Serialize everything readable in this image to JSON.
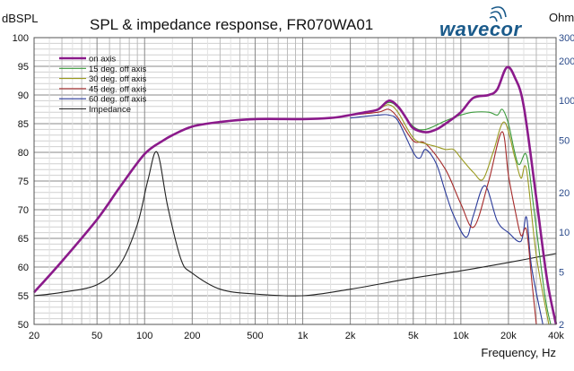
{
  "chart_data": {
    "type": "line",
    "title": "SPL & impedance response, FR070WA01",
    "xlabel": "Frequency, Hz",
    "ylabel": "dBSPL",
    "y2label": "Ohm",
    "xscale": "log",
    "xlim": [
      20,
      40000
    ],
    "ylim": [
      50,
      100
    ],
    "y2lim": [
      2,
      300
    ],
    "y2scale": "log",
    "grid": true,
    "legend_position": "top-left",
    "xticks": [
      {
        "v": 20,
        "label": "20"
      },
      {
        "v": 50,
        "label": "50"
      },
      {
        "v": 100,
        "label": "100"
      },
      {
        "v": 200,
        "label": "200"
      },
      {
        "v": 500,
        "label": "500"
      },
      {
        "v": 1000,
        "label": "1k"
      },
      {
        "v": 2000,
        "label": "2k"
      },
      {
        "v": 5000,
        "label": "5k"
      },
      {
        "v": 10000,
        "label": "10k"
      },
      {
        "v": 20000,
        "label": "20k"
      },
      {
        "v": 40000,
        "label": "40k"
      }
    ],
    "yticks": [
      {
        "v": 100,
        "label": "100"
      },
      {
        "v": 95,
        "label": "95"
      },
      {
        "v": 90,
        "label": "90"
      },
      {
        "v": 85,
        "label": "85"
      },
      {
        "v": 80,
        "label": "80"
      },
      {
        "v": 75,
        "label": "75"
      },
      {
        "v": 70,
        "label": "70"
      },
      {
        "v": 65,
        "label": "65"
      },
      {
        "v": 60,
        "label": "60"
      },
      {
        "v": 55,
        "label": "55"
      },
      {
        "v": 50,
        "label": "50"
      }
    ],
    "y2ticks": [
      {
        "v": 300,
        "label": "300"
      },
      {
        "v": 200,
        "label": "200"
      },
      {
        "v": 100,
        "label": "100"
      },
      {
        "v": 50,
        "label": "50"
      },
      {
        "v": 20,
        "label": "20"
      },
      {
        "v": 10,
        "label": "10"
      },
      {
        "v": 5,
        "label": "5"
      },
      {
        "v": 2,
        "label": "2"
      }
    ],
    "series": [
      {
        "name": "on axis",
        "color": "#8b1a8b",
        "axis": "left",
        "width": 2.6,
        "x": [
          20,
          30,
          50,
          70,
          100,
          130,
          150,
          200,
          300,
          500,
          1000,
          1500,
          2000,
          2500,
          3000,
          3500,
          4000,
          4500,
          5000,
          6000,
          7000,
          8000,
          10000,
          12000,
          15000,
          17000,
          19500,
          22000,
          25000,
          30000,
          35000,
          40000
        ],
        "y": [
          55.6,
          61,
          68.3,
          74,
          79.7,
          82,
          83,
          84.5,
          85.3,
          85.8,
          85.8,
          86,
          86.5,
          87,
          87.5,
          89,
          88,
          86,
          84.2,
          83.5,
          84,
          85,
          87,
          89.5,
          90,
          91,
          94.8,
          93,
          88,
          72,
          58,
          50
        ]
      },
      {
        "name": "15 deg. off axis",
        "color": "#3a9a3a",
        "axis": "left",
        "width": 1.1,
        "x": [
          3000,
          3500,
          4000,
          5000,
          6000,
          8000,
          10000,
          12000,
          15000,
          17000,
          18300,
          20000,
          23000,
          26000,
          29000,
          34000,
          37000
        ],
        "y": [
          87.5,
          88.7,
          87.8,
          84.5,
          84,
          85.5,
          86.5,
          87,
          87,
          86.5,
          87.5,
          85,
          78,
          79.5,
          70,
          55,
          50
        ]
      },
      {
        "name": "30 deg. off axis",
        "color": "#9a9a20",
        "axis": "left",
        "width": 1.1,
        "x": [
          2500,
          3000,
          3500,
          4000,
          5000,
          6000,
          7000,
          8000,
          9000,
          10000,
          12000,
          13800,
          16000,
          18800,
          22000,
          24000,
          26000,
          30000,
          36000
        ],
        "y": [
          87,
          87.5,
          88.3,
          87,
          82.5,
          81.5,
          81,
          80.5,
          80.5,
          79,
          76.5,
          75.3,
          80,
          85.3,
          79,
          75.5,
          77,
          62,
          50
        ]
      },
      {
        "name": "45 deg. off axis",
        "color": "#a52a2a",
        "axis": "left",
        "width": 1.1,
        "x": [
          2000,
          3000,
          3500,
          4000,
          5000,
          6000,
          8000,
          10000,
          12100,
          15000,
          18200,
          20000,
          22000,
          24000,
          26000,
          28000,
          30000
        ],
        "y": [
          86.5,
          87,
          87.5,
          86,
          82,
          81.5,
          77,
          71,
          67,
          75,
          83.6,
          76,
          70,
          65.5,
          66.5,
          58,
          50
        ]
      },
      {
        "name": "60 deg. off axis",
        "color": "#2a3a9a",
        "axis": "left",
        "width": 1.1,
        "x": [
          2000,
          3000,
          3500,
          4000,
          5000,
          5500,
          6000,
          7000,
          8000,
          9000,
          10800,
          12000,
          14200,
          17000,
          20000,
          24000,
          26000,
          28000,
          33000
        ],
        "y": [
          86,
          86.5,
          86.5,
          85.5,
          80,
          79,
          80.5,
          78,
          73,
          69,
          65.2,
          69,
          74.2,
          68,
          66,
          64.5,
          68.7,
          60,
          50
        ]
      },
      {
        "name": "Impedance",
        "color": "#222222",
        "axis": "right",
        "width": 1.1,
        "x": [
          20,
          30,
          50,
          70,
          90,
          105,
          120,
          140,
          170,
          200,
          300,
          500,
          1000,
          2000,
          5000,
          10000,
          20000,
          40000
        ],
        "y": [
          3.3,
          3.5,
          4,
          5.7,
          11.5,
          25,
          40.5,
          15.7,
          6.2,
          4.9,
          3.7,
          3.4,
          3.3,
          3.7,
          4.5,
          5.1,
          5.9,
          6.9
        ]
      }
    ]
  },
  "logo": {
    "text": "wavecor",
    "color": "#1a5a8a"
  }
}
